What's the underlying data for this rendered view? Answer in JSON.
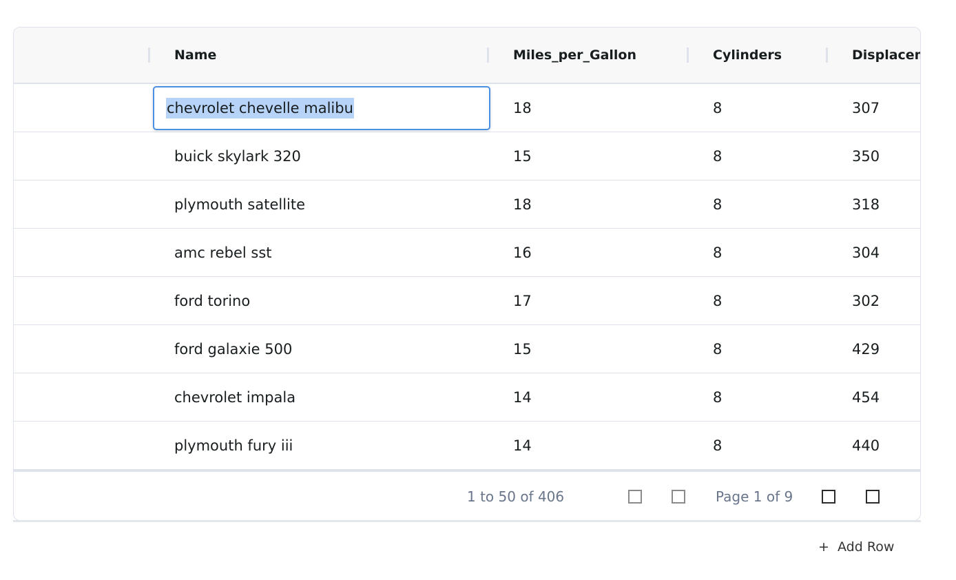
{
  "columns": [
    "Name",
    "Miles_per_Gallon",
    "Cylinders",
    "Displacement"
  ],
  "editing_value": "chevrolet chevelle malibu",
  "rows": [
    [
      "chevrolet chevelle malibu",
      "18",
      "8",
      "307"
    ],
    [
      "buick skylark 320",
      "15",
      "8",
      "350"
    ],
    [
      "plymouth satellite",
      "18",
      "8",
      "318"
    ],
    [
      "amc rebel sst",
      "16",
      "8",
      "304"
    ],
    [
      "ford torino",
      "17",
      "8",
      "302"
    ],
    [
      "ford galaxie 500",
      "15",
      "8",
      "429"
    ],
    [
      "chevrolet impala",
      "14",
      "8",
      "454"
    ],
    [
      "plymouth fury iii",
      "14",
      "8",
      "440"
    ]
  ],
  "pagination": {
    "summary": "1 to 50 of 406",
    "page": "Page 1 of 9"
  },
  "add_row": {
    "icon": "+",
    "label": "Add Row"
  },
  "colors": {
    "accent": "#4a90e2",
    "selection": "#b7d4f8",
    "border": "#dde2eb"
  }
}
